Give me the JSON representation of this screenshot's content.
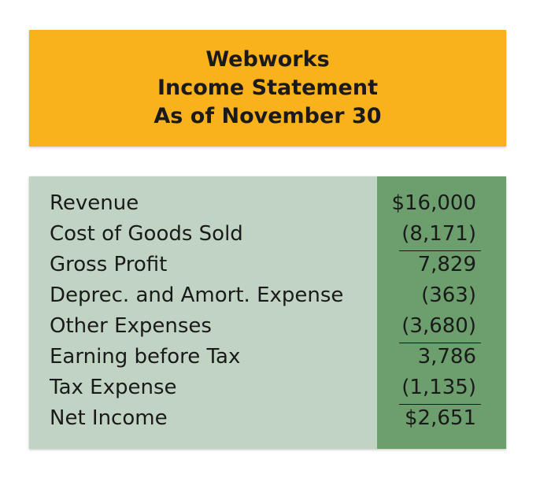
{
  "header": {
    "company": "Webworks",
    "statement": "Income Statement",
    "period": "As of November 30"
  },
  "colors": {
    "header_background": "#f9b21c",
    "table_background": "#c1d3c3",
    "value_column_background": "#6d9e6d",
    "text": "#1a1a1a"
  },
  "rows": [
    {
      "label": "Revenue",
      "value": "$16,000"
    },
    {
      "label": "Cost of Goods Sold",
      "value": "(8,171)"
    },
    {
      "label": "Gross Profit",
      "value": "7,829"
    },
    {
      "label": "Deprec. and Amort. Expense",
      "value": "(363)"
    },
    {
      "label": "Other Expenses",
      "value": "(3,680)"
    },
    {
      "label": "Earning before Tax",
      "value": "3,786"
    },
    {
      "label": "Tax Expense",
      "value": "(1,135)"
    },
    {
      "label": "Net Income",
      "value": "$2,651"
    }
  ]
}
